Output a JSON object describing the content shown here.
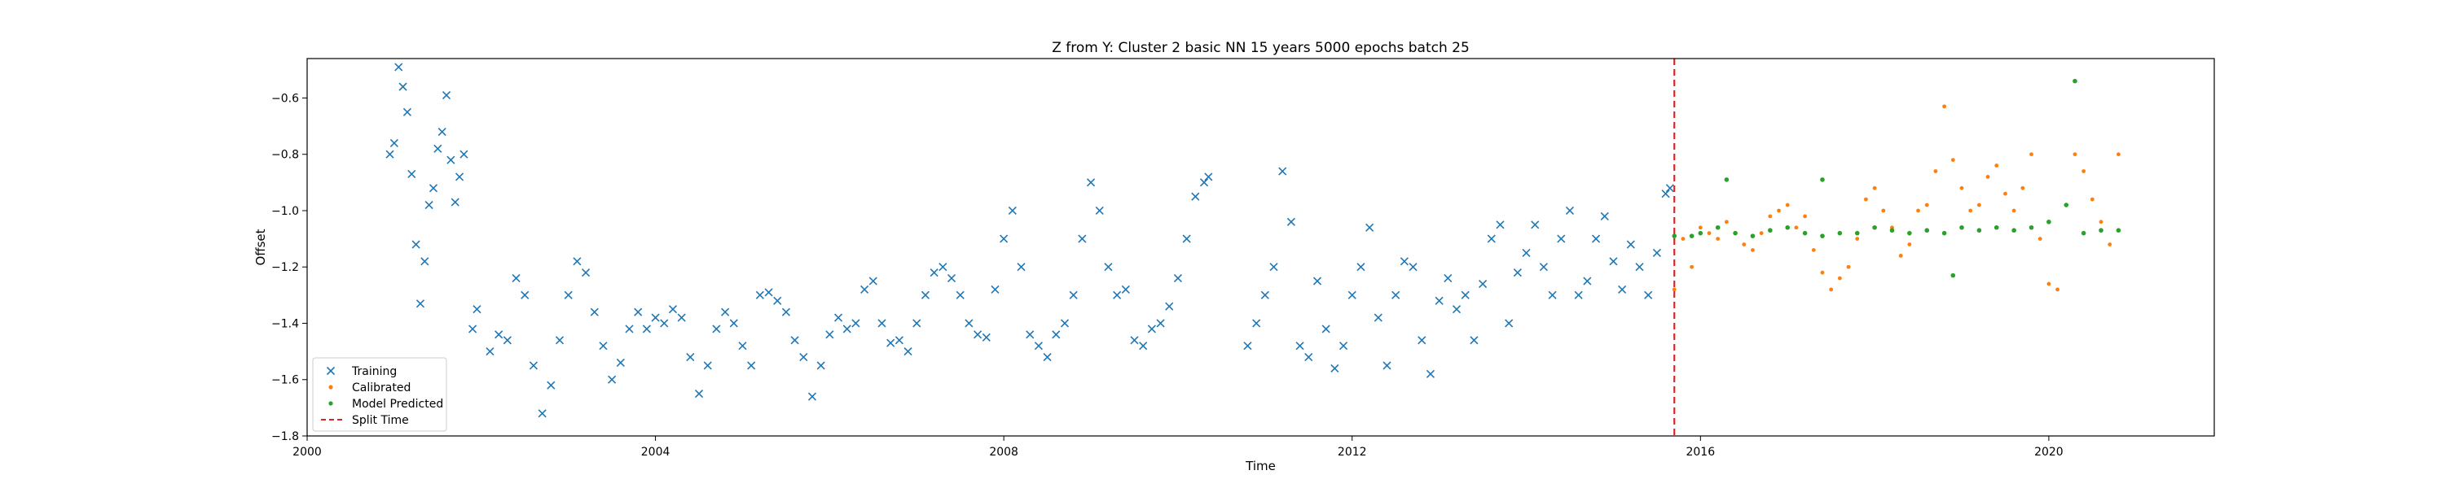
{
  "chart_data": {
    "type": "scatter",
    "title": "Z from Y: Cluster 2 basic NN 15 years 5000 epochs batch 25",
    "xlabel": "Time",
    "ylabel": "Offset",
    "xlim": [
      2000.0,
      2021.9
    ],
    "ylim": [
      -1.8,
      -0.46
    ],
    "x_ticks": [
      2000,
      2004,
      2008,
      2012,
      2016,
      2020
    ],
    "y_ticks": [
      -1.8,
      -1.6,
      -1.4,
      -1.2,
      -1.0,
      -0.8,
      -0.6
    ],
    "grid": false,
    "legend_position": "lower-left",
    "split_time": 2015.7,
    "colors": {
      "training": "#1f77b4",
      "calibrated": "#ff7f0e",
      "predicted": "#2ca02c",
      "split": "#d62728"
    },
    "series": [
      {
        "name": "Training",
        "marker": "x",
        "points": [
          [
            2000.95,
            -0.8
          ],
          [
            2001.0,
            -0.76
          ],
          [
            2001.05,
            -0.49
          ],
          [
            2001.1,
            -0.56
          ],
          [
            2001.15,
            -0.65
          ],
          [
            2001.2,
            -0.87
          ],
          [
            2001.25,
            -1.12
          ],
          [
            2001.3,
            -1.33
          ],
          [
            2001.35,
            -1.18
          ],
          [
            2001.4,
            -0.98
          ],
          [
            2001.45,
            -0.92
          ],
          [
            2001.5,
            -0.78
          ],
          [
            2001.55,
            -0.72
          ],
          [
            2001.6,
            -0.59
          ],
          [
            2001.65,
            -0.82
          ],
          [
            2001.7,
            -0.97
          ],
          [
            2001.75,
            -0.88
          ],
          [
            2001.8,
            -0.8
          ],
          [
            2001.9,
            -1.42
          ],
          [
            2001.95,
            -1.35
          ],
          [
            2002.1,
            -1.5
          ],
          [
            2002.2,
            -1.44
          ],
          [
            2002.3,
            -1.46
          ],
          [
            2002.4,
            -1.24
          ],
          [
            2002.5,
            -1.3
          ],
          [
            2002.6,
            -1.55
          ],
          [
            2002.7,
            -1.72
          ],
          [
            2002.8,
            -1.62
          ],
          [
            2002.9,
            -1.46
          ],
          [
            2003.0,
            -1.3
          ],
          [
            2003.1,
            -1.18
          ],
          [
            2003.2,
            -1.22
          ],
          [
            2003.3,
            -1.36
          ],
          [
            2003.4,
            -1.48
          ],
          [
            2003.5,
            -1.6
          ],
          [
            2003.6,
            -1.54
          ],
          [
            2003.7,
            -1.42
          ],
          [
            2003.8,
            -1.36
          ],
          [
            2003.9,
            -1.42
          ],
          [
            2004.0,
            -1.38
          ],
          [
            2004.1,
            -1.4
          ],
          [
            2004.2,
            -1.35
          ],
          [
            2004.3,
            -1.38
          ],
          [
            2004.4,
            -1.52
          ],
          [
            2004.5,
            -1.65
          ],
          [
            2004.6,
            -1.55
          ],
          [
            2004.7,
            -1.42
          ],
          [
            2004.8,
            -1.36
          ],
          [
            2004.9,
            -1.4
          ],
          [
            2005.0,
            -1.48
          ],
          [
            2005.1,
            -1.55
          ],
          [
            2005.2,
            -1.3
          ],
          [
            2005.3,
            -1.29
          ],
          [
            2005.4,
            -1.32
          ],
          [
            2005.5,
            -1.36
          ],
          [
            2005.6,
            -1.46
          ],
          [
            2005.7,
            -1.52
          ],
          [
            2005.8,
            -1.66
          ],
          [
            2005.9,
            -1.55
          ],
          [
            2006.0,
            -1.44
          ],
          [
            2006.1,
            -1.38
          ],
          [
            2006.2,
            -1.42
          ],
          [
            2006.3,
            -1.4
          ],
          [
            2006.4,
            -1.28
          ],
          [
            2006.5,
            -1.25
          ],
          [
            2006.6,
            -1.4
          ],
          [
            2006.7,
            -1.47
          ],
          [
            2006.8,
            -1.46
          ],
          [
            2006.9,
            -1.5
          ],
          [
            2007.0,
            -1.4
          ],
          [
            2007.1,
            -1.3
          ],
          [
            2007.2,
            -1.22
          ],
          [
            2007.3,
            -1.2
          ],
          [
            2007.4,
            -1.24
          ],
          [
            2007.5,
            -1.3
          ],
          [
            2007.6,
            -1.4
          ],
          [
            2007.7,
            -1.44
          ],
          [
            2007.8,
            -1.45
          ],
          [
            2007.9,
            -1.28
          ],
          [
            2008.0,
            -1.1
          ],
          [
            2008.1,
            -1.0
          ],
          [
            2008.2,
            -1.2
          ],
          [
            2008.3,
            -1.44
          ],
          [
            2008.4,
            -1.48
          ],
          [
            2008.5,
            -1.52
          ],
          [
            2008.6,
            -1.44
          ],
          [
            2008.7,
            -1.4
          ],
          [
            2008.8,
            -1.3
          ],
          [
            2008.9,
            -1.1
          ],
          [
            2009.0,
            -0.9
          ],
          [
            2009.1,
            -1.0
          ],
          [
            2009.2,
            -1.2
          ],
          [
            2009.3,
            -1.3
          ],
          [
            2009.4,
            -1.28
          ],
          [
            2009.5,
            -1.46
          ],
          [
            2009.6,
            -1.48
          ],
          [
            2009.7,
            -1.42
          ],
          [
            2009.8,
            -1.4
          ],
          [
            2009.9,
            -1.34
          ],
          [
            2010.0,
            -1.24
          ],
          [
            2010.1,
            -1.1
          ],
          [
            2010.2,
            -0.95
          ],
          [
            2010.3,
            -0.9
          ],
          [
            2010.35,
            -0.88
          ],
          [
            2010.8,
            -1.48
          ],
          [
            2010.9,
            -1.4
          ],
          [
            2011.0,
            -1.3
          ],
          [
            2011.1,
            -1.2
          ],
          [
            2011.2,
            -0.86
          ],
          [
            2011.3,
            -1.04
          ],
          [
            2011.4,
            -1.48
          ],
          [
            2011.5,
            -1.52
          ],
          [
            2011.6,
            -1.25
          ],
          [
            2011.7,
            -1.42
          ],
          [
            2011.8,
            -1.56
          ],
          [
            2011.9,
            -1.48
          ],
          [
            2012.0,
            -1.3
          ],
          [
            2012.1,
            -1.2
          ],
          [
            2012.2,
            -1.06
          ],
          [
            2012.3,
            -1.38
          ],
          [
            2012.4,
            -1.55
          ],
          [
            2012.5,
            -1.3
          ],
          [
            2012.6,
            -1.18
          ],
          [
            2012.7,
            -1.2
          ],
          [
            2012.8,
            -1.46
          ],
          [
            2012.9,
            -1.58
          ],
          [
            2013.0,
            -1.32
          ],
          [
            2013.1,
            -1.24
          ],
          [
            2013.2,
            -1.35
          ],
          [
            2013.3,
            -1.3
          ],
          [
            2013.4,
            -1.46
          ],
          [
            2013.5,
            -1.26
          ],
          [
            2013.6,
            -1.1
          ],
          [
            2013.7,
            -1.05
          ],
          [
            2013.8,
            -1.4
          ],
          [
            2013.9,
            -1.22
          ],
          [
            2014.0,
            -1.15
          ],
          [
            2014.1,
            -1.05
          ],
          [
            2014.2,
            -1.2
          ],
          [
            2014.3,
            -1.3
          ],
          [
            2014.4,
            -1.1
          ],
          [
            2014.5,
            -1.0
          ],
          [
            2014.6,
            -1.3
          ],
          [
            2014.7,
            -1.25
          ],
          [
            2014.8,
            -1.1
          ],
          [
            2014.9,
            -1.02
          ],
          [
            2015.0,
            -1.18
          ],
          [
            2015.1,
            -1.28
          ],
          [
            2015.2,
            -1.12
          ],
          [
            2015.3,
            -1.2
          ],
          [
            2015.4,
            -1.3
          ],
          [
            2015.5,
            -1.15
          ],
          [
            2015.6,
            -0.94
          ],
          [
            2015.65,
            -0.92
          ]
        ]
      },
      {
        "name": "Calibrated",
        "marker": "dot",
        "points": [
          [
            2015.7,
            -1.28
          ],
          [
            2015.8,
            -1.1
          ],
          [
            2015.9,
            -1.2
          ],
          [
            2016.0,
            -1.06
          ],
          [
            2016.1,
            -1.08
          ],
          [
            2016.2,
            -1.1
          ],
          [
            2016.3,
            -1.04
          ],
          [
            2016.4,
            -1.08
          ],
          [
            2016.5,
            -1.12
          ],
          [
            2016.6,
            -1.14
          ],
          [
            2016.7,
            -1.08
          ],
          [
            2016.8,
            -1.02
          ],
          [
            2016.9,
            -1.0
          ],
          [
            2017.0,
            -0.98
          ],
          [
            2017.1,
            -1.06
          ],
          [
            2017.2,
            -1.02
          ],
          [
            2017.3,
            -1.14
          ],
          [
            2017.4,
            -1.22
          ],
          [
            2017.5,
            -1.28
          ],
          [
            2017.6,
            -1.24
          ],
          [
            2017.7,
            -1.2
          ],
          [
            2017.8,
            -1.1
          ],
          [
            2017.9,
            -0.96
          ],
          [
            2018.0,
            -0.92
          ],
          [
            2018.1,
            -1.0
          ],
          [
            2018.2,
            -1.06
          ],
          [
            2018.3,
            -1.16
          ],
          [
            2018.4,
            -1.12
          ],
          [
            2018.5,
            -1.0
          ],
          [
            2018.6,
            -0.98
          ],
          [
            2018.7,
            -0.86
          ],
          [
            2018.8,
            -0.63
          ],
          [
            2018.9,
            -0.82
          ],
          [
            2019.0,
            -0.92
          ],
          [
            2019.1,
            -1.0
          ],
          [
            2019.2,
            -0.98
          ],
          [
            2019.3,
            -0.88
          ],
          [
            2019.4,
            -0.84
          ],
          [
            2019.5,
            -0.94
          ],
          [
            2019.6,
            -1.0
          ],
          [
            2019.7,
            -0.92
          ],
          [
            2019.8,
            -0.8
          ],
          [
            2019.9,
            -1.1
          ],
          [
            2020.0,
            -1.26
          ],
          [
            2020.1,
            -1.28
          ],
          [
            2020.3,
            -0.8
          ],
          [
            2020.4,
            -0.86
          ],
          [
            2020.5,
            -0.96
          ],
          [
            2020.6,
            -1.04
          ],
          [
            2020.7,
            -1.12
          ],
          [
            2020.8,
            -0.8
          ]
        ]
      },
      {
        "name": "Model Predicted",
        "marker": "dot",
        "points": [
          [
            2015.7,
            -1.09
          ],
          [
            2015.9,
            -1.09
          ],
          [
            2016.0,
            -1.08
          ],
          [
            2016.2,
            -1.06
          ],
          [
            2016.4,
            -1.08
          ],
          [
            2016.6,
            -1.09
          ],
          [
            2016.8,
            -1.07
          ],
          [
            2017.0,
            -1.06
          ],
          [
            2017.2,
            -1.08
          ],
          [
            2017.4,
            -1.09
          ],
          [
            2017.6,
            -1.08
          ],
          [
            2017.8,
            -1.08
          ],
          [
            2018.0,
            -1.06
          ],
          [
            2018.2,
            -1.07
          ],
          [
            2018.4,
            -1.08
          ],
          [
            2018.6,
            -1.07
          ],
          [
            2018.8,
            -1.08
          ],
          [
            2019.0,
            -1.06
          ],
          [
            2019.2,
            -1.07
          ],
          [
            2019.4,
            -1.06
          ],
          [
            2019.6,
            -1.07
          ],
          [
            2019.8,
            -1.06
          ],
          [
            2020.0,
            -1.04
          ],
          [
            2020.2,
            -0.98
          ],
          [
            2020.3,
            -0.54
          ],
          [
            2020.4,
            -1.08
          ],
          [
            2020.6,
            -1.07
          ],
          [
            2020.8,
            -1.07
          ],
          [
            2016.3,
            -0.89
          ],
          [
            2017.4,
            -0.89
          ],
          [
            2018.9,
            -1.23
          ]
        ]
      }
    ],
    "split_label": "Split Time"
  }
}
